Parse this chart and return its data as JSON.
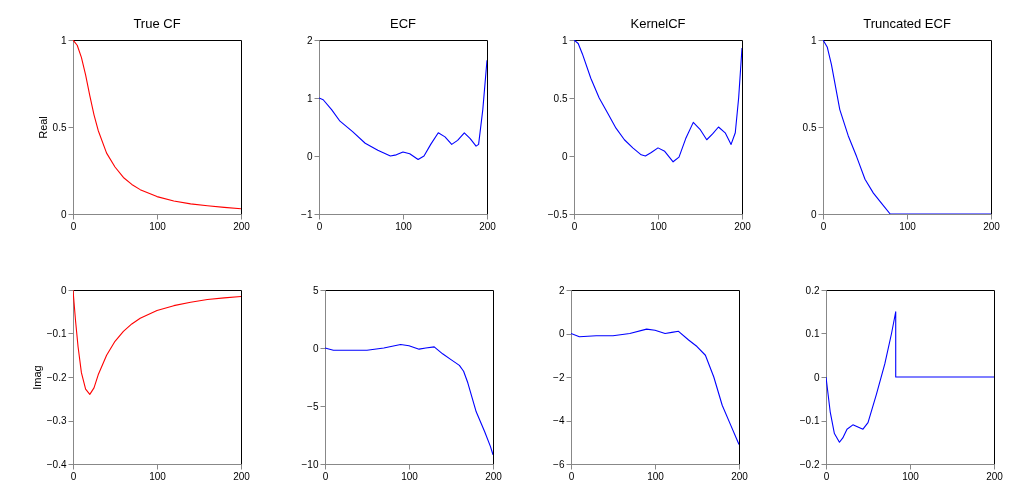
{
  "chart_data": [
    {
      "type": "line",
      "title": "True CF",
      "ylabel": "Real",
      "xlim": [
        0,
        200
      ],
      "xticks": [
        0,
        100,
        200
      ],
      "ylim": [
        0,
        1
      ],
      "yticks": [
        0,
        0.5,
        1
      ],
      "grid": false,
      "line_style": "solid",
      "marker": "none",
      "series": [
        {
          "color": "#ff0000",
          "x": [
            0,
            5,
            10,
            15,
            20,
            25,
            30,
            40,
            50,
            60,
            70,
            80,
            100,
            120,
            140,
            160,
            180,
            200
          ],
          "values": [
            1,
            0.97,
            0.9,
            0.8,
            0.68,
            0.57,
            0.48,
            0.35,
            0.27,
            0.21,
            0.17,
            0.14,
            0.1,
            0.075,
            0.058,
            0.047,
            0.038,
            0.03
          ]
        }
      ]
    },
    {
      "type": "line",
      "title": "ECF",
      "xlim": [
        0,
        200
      ],
      "xticks": [
        0,
        100,
        200
      ],
      "ylim": [
        -1,
        2
      ],
      "yticks": [
        -1,
        0,
        1,
        2
      ],
      "grid": false,
      "line_style": "solid",
      "marker": "none",
      "series": [
        {
          "color": "#0000ff",
          "x": [
            0,
            5,
            15,
            25,
            40,
            55,
            70,
            85,
            92,
            100,
            108,
            118,
            125,
            133,
            142,
            150,
            158,
            165,
            173,
            180,
            187,
            190,
            195,
            200
          ],
          "values": [
            1.0,
            0.97,
            0.8,
            0.6,
            0.42,
            0.22,
            0.1,
            0.0,
            0.02,
            0.07,
            0.04,
            -0.06,
            0.0,
            0.2,
            0.4,
            0.33,
            0.2,
            0.27,
            0.4,
            0.3,
            0.17,
            0.2,
            0.8,
            1.65
          ]
        }
      ]
    },
    {
      "type": "line",
      "title": "KernelCF",
      "xlim": [
        0,
        200
      ],
      "xticks": [
        0,
        100,
        200
      ],
      "ylim": [
        -0.5,
        1
      ],
      "yticks": [
        -0.5,
        0,
        0.5,
        1
      ],
      "grid": false,
      "line_style": "solid",
      "marker": "none",
      "series": [
        {
          "color": "#0000ff",
          "x": [
            0,
            5,
            10,
            20,
            30,
            40,
            50,
            60,
            70,
            80,
            85,
            92,
            100,
            108,
            118,
            125,
            133,
            142,
            150,
            158,
            165,
            172,
            180,
            187,
            192,
            196,
            200
          ],
          "values": [
            1,
            0.97,
            0.88,
            0.67,
            0.5,
            0.37,
            0.24,
            0.14,
            0.07,
            0.01,
            0.0,
            0.03,
            0.07,
            0.04,
            -0.05,
            -0.01,
            0.15,
            0.29,
            0.23,
            0.14,
            0.19,
            0.25,
            0.2,
            0.1,
            0.2,
            0.5,
            0.93
          ]
        }
      ]
    },
    {
      "type": "line",
      "title": "Truncated ECF",
      "xlim": [
        0,
        200
      ],
      "xticks": [
        0,
        100,
        200
      ],
      "ylim": [
        0,
        1
      ],
      "yticks": [
        0,
        0.5,
        1
      ],
      "grid": false,
      "line_style": "solid",
      "marker": "none",
      "series": [
        {
          "color": "#0000ff",
          "x": [
            0,
            5,
            10,
            20,
            30,
            40,
            50,
            60,
            70,
            80,
            85,
            200
          ],
          "values": [
            1,
            0.96,
            0.86,
            0.6,
            0.45,
            0.33,
            0.2,
            0.12,
            0.06,
            0,
            0,
            0
          ]
        }
      ]
    },
    {
      "type": "line",
      "ylabel": "Imag",
      "xlim": [
        0,
        200
      ],
      "xticks": [
        0,
        100,
        200
      ],
      "ylim": [
        -0.4,
        0
      ],
      "yticks": [
        -0.4,
        -0.3,
        -0.2,
        -0.1,
        0
      ],
      "grid": false,
      "line_style": "solid",
      "marker": "none",
      "series": [
        {
          "color": "#ff0000",
          "x": [
            0,
            3,
            6,
            10,
            15,
            20,
            25,
            30,
            40,
            50,
            60,
            70,
            80,
            100,
            120,
            140,
            160,
            180,
            200
          ],
          "values": [
            0,
            -0.07,
            -0.13,
            -0.19,
            -0.228,
            -0.24,
            -0.225,
            -0.195,
            -0.15,
            -0.118,
            -0.095,
            -0.078,
            -0.065,
            -0.047,
            -0.036,
            -0.028,
            -0.022,
            -0.018,
            -0.015
          ]
        }
      ]
    },
    {
      "type": "line",
      "xlim": [
        0,
        200
      ],
      "xticks": [
        0,
        100,
        200
      ],
      "ylim": [
        -10,
        5
      ],
      "yticks": [
        -10,
        -5,
        0,
        5
      ],
      "grid": false,
      "line_style": "solid",
      "marker": "none",
      "series": [
        {
          "color": "#0000ff",
          "x": [
            0,
            10,
            30,
            50,
            70,
            90,
            100,
            112,
            120,
            130,
            140,
            150,
            160,
            165,
            170,
            180,
            190,
            197,
            200
          ],
          "values": [
            0,
            -0.2,
            -0.2,
            -0.2,
            0,
            0.3,
            0.2,
            -0.1,
            0,
            0.1,
            -0.5,
            -1.0,
            -1.5,
            -2.0,
            -3.0,
            -5.5,
            -7.2,
            -8.5,
            -9.2
          ]
        }
      ]
    },
    {
      "type": "line",
      "xlim": [
        0,
        200
      ],
      "xticks": [
        0,
        100,
        200
      ],
      "ylim": [
        -6,
        2
      ],
      "yticks": [
        -6,
        -4,
        -2,
        0,
        2
      ],
      "grid": false,
      "line_style": "solid",
      "marker": "none",
      "series": [
        {
          "color": "#0000ff",
          "x": [
            0,
            10,
            30,
            50,
            70,
            90,
            100,
            112,
            120,
            128,
            140,
            150,
            160,
            170,
            180,
            190,
            200
          ],
          "values": [
            0,
            -0.15,
            -0.1,
            -0.1,
            0.0,
            0.2,
            0.15,
            0.0,
            0.05,
            0.1,
            -0.3,
            -0.6,
            -1.0,
            -2.0,
            -3.3,
            -4.2,
            -5.1
          ]
        }
      ]
    },
    {
      "type": "line",
      "xlim": [
        0,
        200
      ],
      "xticks": [
        0,
        100,
        200
      ],
      "ylim": [
        -0.2,
        0.2
      ],
      "yticks": [
        -0.2,
        -0.1,
        0,
        0.1,
        0.2
      ],
      "grid": false,
      "line_style": "solid",
      "marker": "none",
      "series": [
        {
          "color": "#0000ff",
          "x": [
            0,
            5,
            10,
            16,
            20,
            25,
            32,
            38,
            44,
            50,
            60,
            70,
            78,
            83,
            83,
            200
          ],
          "values": [
            0,
            -0.08,
            -0.13,
            -0.15,
            -0.14,
            -0.12,
            -0.11,
            -0.115,
            -0.12,
            -0.105,
            -0.04,
            0.03,
            0.1,
            0.15,
            0,
            0
          ]
        }
      ]
    }
  ]
}
